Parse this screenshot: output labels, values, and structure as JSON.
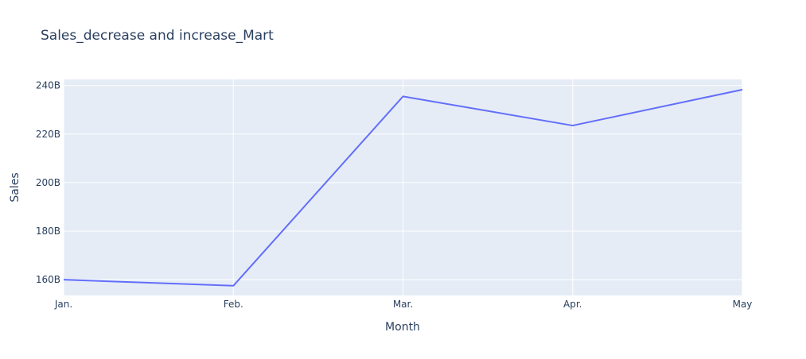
{
  "chart_data": {
    "type": "line",
    "title": "Sales_decrease and increase_Mart",
    "xlabel": "Month",
    "ylabel": "Sales",
    "x": [
      "Jan.",
      "Feb.",
      "Mar.",
      "Apr.",
      "May"
    ],
    "series": [
      {
        "values": [
          160.0,
          157.5,
          235.5,
          223.5,
          238.3
        ]
      }
    ],
    "y_unit_suffix": "B",
    "ylim": [
      153.5,
      242.5
    ],
    "yticks": [
      160,
      180,
      200,
      220,
      240
    ],
    "ytick_labels": [
      "160B",
      "180B",
      "200B",
      "220B",
      "240B"
    ],
    "grid": true,
    "colors": {
      "line": "#636efa",
      "plot_bg": "#e5ecf6",
      "grid": "#ffffff",
      "text": "#2a3f5f"
    }
  }
}
